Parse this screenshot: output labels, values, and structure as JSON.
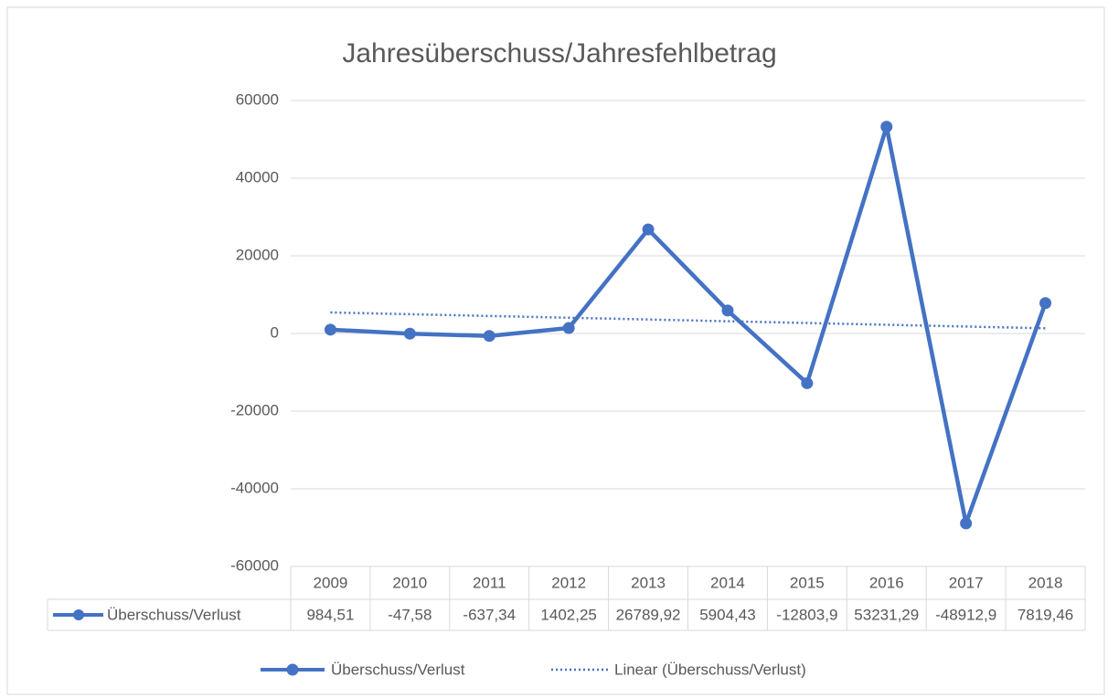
{
  "chart_data": {
    "type": "line",
    "title": "Jahresüberschuss/Jahresfehlbetrag",
    "categories": [
      "2009",
      "2010",
      "2011",
      "2012",
      "2013",
      "2014",
      "2015",
      "2016",
      "2017",
      "2018"
    ],
    "series": [
      {
        "name": "Überschuss/Verlust",
        "color": "#4472c4",
        "values": [
          984.51,
          -47.58,
          -637.34,
          1402.25,
          26789.92,
          5904.43,
          -12803.9,
          53231.29,
          -48912.9,
          7819.46
        ],
        "value_labels": [
          "984,51",
          "-47,58",
          "-637,34",
          "1402,25",
          "26789,92",
          "5904,43",
          "-12803,9",
          "53231,29",
          "-48912,9",
          "7819,46"
        ]
      }
    ],
    "trendline": {
      "name": "Linear (Überschuss/Verlust)",
      "type": "linear",
      "color": "#4472c4"
    },
    "ylim": [
      -60000,
      60000
    ],
    "yticks": [
      -60000,
      -40000,
      -20000,
      0,
      20000,
      40000,
      60000
    ],
    "grid": true,
    "legend": "bottom",
    "data_table": true
  }
}
